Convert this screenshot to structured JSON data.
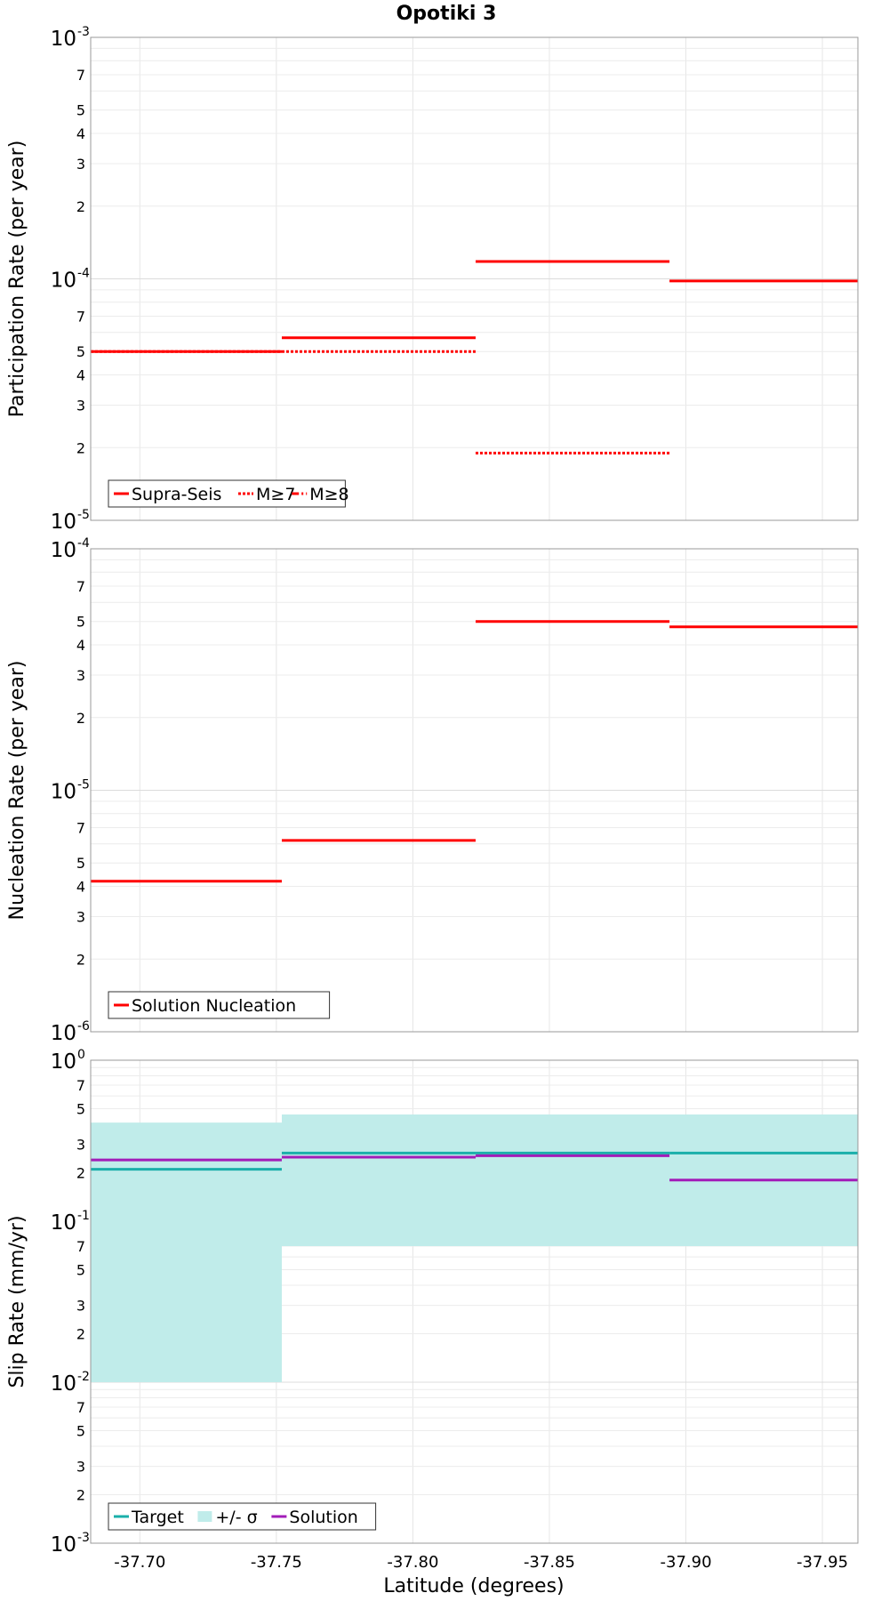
{
  "chart_data": {
    "type": "line",
    "title": "Opotiki 3",
    "xlabel": "Latitude (degrees)",
    "xlim": [
      -37.682,
      -37.963
    ],
    "xticks": [
      -37.7,
      -37.75,
      -37.8,
      -37.85,
      -37.9,
      -37.95
    ],
    "xtick_labels": [
      "-37.70",
      "-37.75",
      "-37.80",
      "-37.85",
      "-37.90",
      "-37.95"
    ],
    "segment_edges": [
      -37.682,
      -37.752,
      -37.823,
      -37.894,
      -37.963
    ],
    "panels": [
      {
        "name": "participation",
        "ylabel": "Participation Rate (per year)",
        "yscale": "log",
        "ylim": [
          1e-05,
          0.001
        ],
        "decade_labels": [
          {
            "base": "10",
            "exp": "-5"
          },
          {
            "base": "10",
            "exp": "-4"
          },
          {
            "base": "10",
            "exp": "-3"
          }
        ],
        "minor_labels": [
          "2",
          "3",
          "4",
          "5",
          "7"
        ],
        "series": [
          {
            "name": "Supra-Seis",
            "style": "solid",
            "color": "#ff0000",
            "values": [
              5e-05,
              5.7e-05,
              0.000118,
              9.8e-05
            ]
          },
          {
            "name": "M≥7",
            "style": "dotted",
            "color": "#ff0000",
            "values": [
              5e-05,
              5e-05,
              1.9e-05,
              null
            ]
          },
          {
            "name": "M≥8",
            "style": "dashdot",
            "color": "#ff0000",
            "values": [
              null,
              null,
              null,
              null
            ]
          }
        ],
        "legend": [
          "Supra-Seis",
          "M≥7",
          "M≥8"
        ]
      },
      {
        "name": "nucleation",
        "ylabel": "Nucleation Rate (per year)",
        "yscale": "log",
        "ylim": [
          1e-06,
          0.0001
        ],
        "decade_labels": [
          {
            "base": "10",
            "exp": "-6"
          },
          {
            "base": "10",
            "exp": "-5"
          },
          {
            "base": "10",
            "exp": "-4"
          }
        ],
        "minor_labels": [
          "2",
          "3",
          "4",
          "5",
          "7"
        ],
        "series": [
          {
            "name": "Solution Nucleation",
            "style": "solid",
            "color": "#ff0000",
            "values": [
              4.2e-06,
              6.2e-06,
              5e-05,
              4.75e-05
            ]
          }
        ],
        "legend": [
          "Solution Nucleation"
        ]
      },
      {
        "name": "slip",
        "ylabel": "Slip Rate (mm/yr)",
        "yscale": "log",
        "ylim": [
          0.001,
          1
        ],
        "decade_labels": [
          {
            "base": "10",
            "exp": "-3"
          },
          {
            "base": "10",
            "exp": "-2"
          },
          {
            "base": "10",
            "exp": "-1"
          },
          {
            "base": "10",
            "exp": "0"
          }
        ],
        "minor_labels": [
          "2",
          "3",
          "5",
          "7"
        ],
        "band": {
          "name": "+/- σ",
          "color": "#c0ecea",
          "lower": [
            0.01,
            0.07,
            0.07,
            0.07
          ],
          "upper": [
            0.41,
            0.46,
            0.46,
            0.46
          ]
        },
        "series": [
          {
            "name": "Target",
            "style": "solid",
            "color": "#1aafaa",
            "values": [
              0.21,
              0.265,
              0.265,
              0.265
            ]
          },
          {
            "name": "Solution",
            "style": "solid",
            "color": "#a21cb8",
            "values": [
              0.24,
              0.25,
              0.255,
              0.18
            ]
          }
        ],
        "legend": [
          "Target",
          "+/- σ",
          "Solution"
        ]
      }
    ]
  }
}
